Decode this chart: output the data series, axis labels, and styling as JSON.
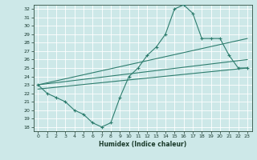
{
  "xlabel": "Humidex (Indice chaleur)",
  "ylabel": "",
  "bg_color": "#cde8e8",
  "grid_color": "#b8d8d8",
  "line_color": "#2e7d6e",
  "xlim": [
    -0.5,
    23.5
  ],
  "ylim": [
    17.5,
    32.5
  ],
  "xticks": [
    0,
    1,
    2,
    3,
    4,
    5,
    6,
    7,
    8,
    9,
    10,
    11,
    12,
    13,
    14,
    15,
    16,
    17,
    18,
    19,
    20,
    21,
    22,
    23
  ],
  "yticks": [
    18,
    19,
    20,
    21,
    22,
    23,
    24,
    25,
    26,
    27,
    28,
    29,
    30,
    31,
    32
  ],
  "line1_x": [
    0,
    1,
    2,
    3,
    4,
    5,
    6,
    7,
    8,
    9,
    10,
    11,
    12,
    13,
    14,
    15,
    16,
    17,
    18,
    19,
    20,
    21,
    22,
    23
  ],
  "line1_y": [
    23.0,
    22.0,
    21.5,
    21.0,
    20.0,
    19.5,
    18.5,
    18.0,
    18.5,
    21.5,
    24.0,
    25.0,
    26.5,
    27.5,
    29.0,
    32.0,
    32.5,
    31.5,
    28.5,
    28.5,
    28.5,
    26.5,
    25.0,
    25.0
  ],
  "line2_x": [
    0,
    23
  ],
  "line2_y": [
    23.0,
    28.5
  ],
  "line3_x": [
    0,
    23
  ],
  "line3_y": [
    23.0,
    26.0
  ],
  "line4_x": [
    0,
    23
  ],
  "line4_y": [
    22.5,
    25.0
  ]
}
